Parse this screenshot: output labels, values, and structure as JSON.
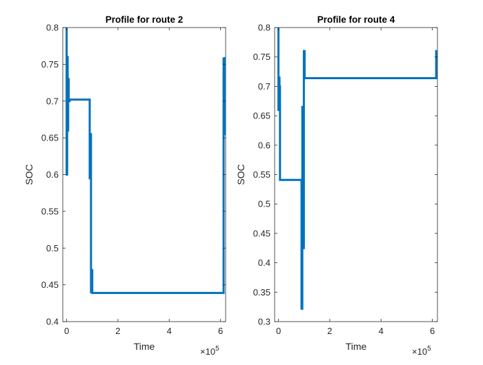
{
  "chart_data": [
    {
      "type": "line",
      "title": "Profile for route 2",
      "xlabel": "Time",
      "ylabel": "SOC",
      "x_exponent_label": "×10",
      "x_exponent_power": "5",
      "xlim": [
        -0.15,
        6.2
      ],
      "ylim": [
        0.4,
        0.8
      ],
      "xticks": [
        0,
        2,
        4,
        6
      ],
      "xtick_labels": [
        "0",
        "2",
        "4",
        "6"
      ],
      "yticks": [
        0.4,
        0.45,
        0.5,
        0.55,
        0.6,
        0.65,
        0.7,
        0.75,
        0.8
      ],
      "ytick_labels": [
        "0.4",
        "0.45",
        "0.5",
        "0.55",
        "0.6",
        "0.65",
        "0.7",
        "0.75",
        "0.8"
      ],
      "color": "#0072BD",
      "grid": false,
      "series": [
        {
          "x": [
            0,
            0,
            0.02,
            0.02,
            0.04,
            0.04,
            0.06,
            0.06,
            0.08,
            0.08,
            0.12,
            0.12,
            0.18,
            0.18,
            0.9,
            0.9,
            0.93,
            0.93,
            0.95,
            0.95,
            0.97,
            0.97,
            1.0,
            1.0,
            6.12,
            6.12,
            6.15,
            6.15,
            6.18,
            6.18
          ],
          "y": [
            0.8,
            0.6,
            0.6,
            0.76,
            0.76,
            0.66,
            0.66,
            0.73,
            0.73,
            0.7,
            0.7,
            0.702,
            0.702,
            0.702,
            0.702,
            0.595,
            0.595,
            0.655,
            0.655,
            0.44,
            0.44,
            0.47,
            0.47,
            0.439,
            0.439,
            0.758,
            0.758,
            0.655,
            0.655,
            0.76
          ]
        }
      ]
    },
    {
      "type": "line",
      "title": "Profile for route 4",
      "xlabel": "Time",
      "ylabel": "SOC",
      "x_exponent_label": "×10",
      "x_exponent_power": "5",
      "xlim": [
        -0.15,
        6.2
      ],
      "ylim": [
        0.3,
        0.8
      ],
      "xticks": [
        0,
        2,
        4,
        6
      ],
      "xtick_labels": [
        "0",
        "2",
        "4",
        "6"
      ],
      "yticks": [
        0.3,
        0.35,
        0.4,
        0.45,
        0.5,
        0.55,
        0.6,
        0.65,
        0.7,
        0.75,
        0.8
      ],
      "ytick_labels": [
        "0.3",
        "0.35",
        "0.4",
        "0.45",
        "0.5",
        "0.55",
        "0.6",
        "0.65",
        "0.7",
        "0.75",
        "0.8"
      ],
      "color": "#0072BD",
      "grid": false,
      "series": [
        {
          "x": [
            0,
            0,
            0.02,
            0.02,
            0.04,
            0.04,
            0.06,
            0.06,
            0.08,
            0.08,
            0.9,
            0.9,
            0.93,
            0.93,
            0.96,
            0.96,
            0.99,
            0.99,
            1.02,
            1.02,
            6.15,
            6.15,
            6.18
          ],
          "y": [
            0.8,
            0.66,
            0.66,
            0.715,
            0.715,
            0.7,
            0.7,
            0.541,
            0.541,
            0.541,
            0.541,
            0.322,
            0.322,
            0.665,
            0.665,
            0.425,
            0.425,
            0.76,
            0.76,
            0.714,
            0.714,
            0.76,
            0.76
          ]
        }
      ]
    }
  ]
}
